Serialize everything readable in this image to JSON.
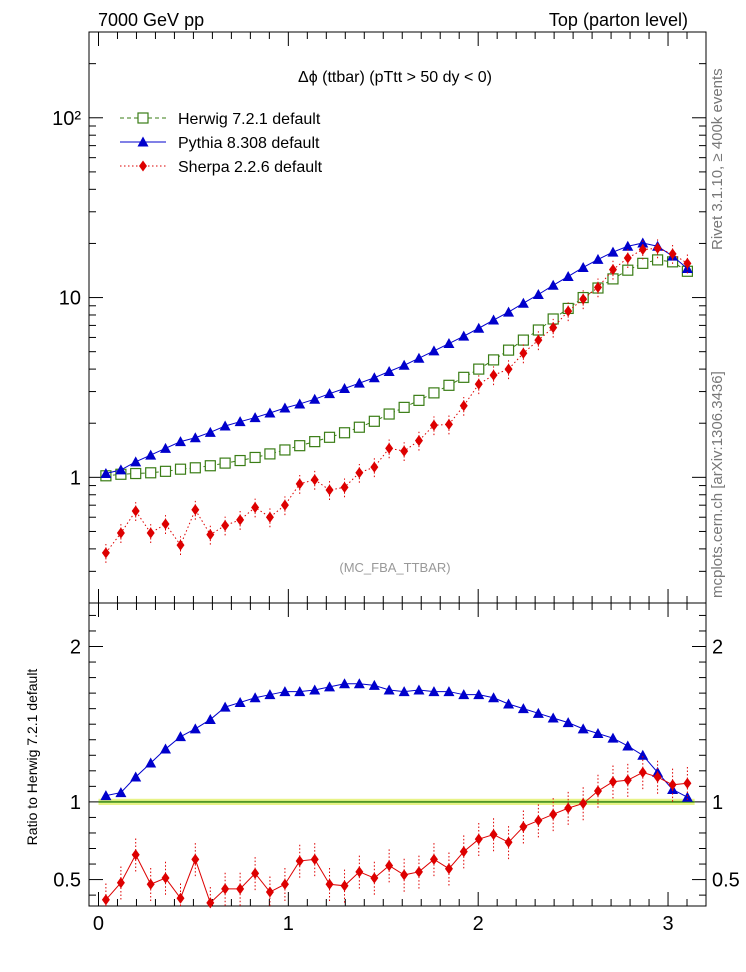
{
  "header": {
    "left": "7000 GeV pp",
    "right": "Top (parton level)",
    "side_top": "Rivet 3.1.10, ≥ 400k events",
    "side_bottom": "mcplots.cern.ch [arXiv:1306.3436]"
  },
  "chart_data": [
    {
      "type": "line",
      "title": "Δϕ (ttbar) (pTtt > 50 dy < 0)",
      "watermark": "(MC_FBA_TTBAR)",
      "xlim": [
        -0.05,
        3.2
      ],
      "ylim": [
        0.2,
        300
      ],
      "log_y": true,
      "legend_position": "top-left",
      "y_ticks": [
        {
          "value": 1,
          "label": "1"
        },
        {
          "value": 10,
          "label": "10"
        },
        {
          "value": 100,
          "label": "10²"
        }
      ],
      "x": [
        0.039,
        0.118,
        0.196,
        0.275,
        0.353,
        0.432,
        0.51,
        0.589,
        0.667,
        0.746,
        0.825,
        0.903,
        0.982,
        1.06,
        1.139,
        1.217,
        1.296,
        1.374,
        1.453,
        1.531,
        1.61,
        1.688,
        1.767,
        1.846,
        1.924,
        2.003,
        2.081,
        2.16,
        2.238,
        2.317,
        2.395,
        2.474,
        2.553,
        2.631,
        2.71,
        2.788,
        2.867,
        2.945,
        3.024,
        3.102
      ],
      "series": [
        {
          "name": "Herwig 7.2.1 default",
          "color": "#3a7d16",
          "marker": "open-square",
          "line": "dashed",
          "values": [
            1.02,
            1.04,
            1.05,
            1.06,
            1.08,
            1.11,
            1.13,
            1.16,
            1.2,
            1.24,
            1.29,
            1.35,
            1.42,
            1.5,
            1.58,
            1.67,
            1.77,
            1.9,
            2.05,
            2.25,
            2.45,
            2.68,
            2.95,
            3.25,
            3.6,
            4.0,
            4.5,
            5.1,
            5.8,
            6.6,
            7.6,
            8.7,
            10.0,
            11.3,
            12.7,
            14.2,
            15.5,
            16.2,
            15.8,
            14.0
          ]
        },
        {
          "name": "Pythia 8.308 default",
          "color": "#0000cc",
          "marker": "filled-triangle",
          "line": "solid",
          "values": [
            1.05,
            1.1,
            1.22,
            1.33,
            1.45,
            1.58,
            1.66,
            1.78,
            1.93,
            2.04,
            2.15,
            2.28,
            2.43,
            2.56,
            2.72,
            2.92,
            3.12,
            3.34,
            3.58,
            3.88,
            4.2,
            4.6,
            5.05,
            5.55,
            6.1,
            6.75,
            7.5,
            8.3,
            9.3,
            10.4,
            11.7,
            13.1,
            14.7,
            16.3,
            17.9,
            19.3,
            20.1,
            19.3,
            17.0,
            14.5
          ]
        },
        {
          "name": "Sherpa 2.2.6 default",
          "color": "#dd0000",
          "marker": "filled-diamond",
          "line": "dotted",
          "values": [
            0.38,
            0.49,
            0.65,
            0.49,
            0.55,
            0.42,
            0.66,
            0.48,
            0.54,
            0.58,
            0.68,
            0.6,
            0.7,
            0.92,
            0.97,
            0.85,
            0.88,
            1.06,
            1.14,
            1.45,
            1.4,
            1.6,
            1.95,
            1.97,
            2.5,
            3.3,
            3.7,
            4.0,
            4.9,
            5.8,
            6.8,
            8.4,
            9.8,
            11.4,
            14.3,
            16.6,
            18.5,
            18.8,
            17.5,
            15.5
          ]
        }
      ]
    },
    {
      "type": "line",
      "ylabel": "Ratio to Herwig 7.2.1 default",
      "xlim": [
        -0.05,
        3.2
      ],
      "ylim": [
        0.33,
        2.28
      ],
      "y_ticks": [
        {
          "value": 0.5,
          "label": "0.5"
        },
        {
          "value": 1,
          "label": "1"
        },
        {
          "value": 2,
          "label": "2"
        }
      ],
      "x_ticks": [
        {
          "value": 0,
          "label": "0"
        },
        {
          "value": 1,
          "label": "1"
        },
        {
          "value": 2,
          "label": "2"
        },
        {
          "value": 3,
          "label": "3"
        }
      ],
      "reference_line": 1,
      "series": [
        {
          "name": "Pythia 8.308 default",
          "color": "#0000cc",
          "values": [
            1.04,
            1.06,
            1.16,
            1.25,
            1.34,
            1.42,
            1.47,
            1.53,
            1.61,
            1.64,
            1.67,
            1.69,
            1.71,
            1.71,
            1.72,
            1.74,
            1.76,
            1.76,
            1.75,
            1.72,
            1.71,
            1.72,
            1.71,
            1.71,
            1.69,
            1.69,
            1.67,
            1.63,
            1.6,
            1.57,
            1.54,
            1.51,
            1.47,
            1.44,
            1.41,
            1.36,
            1.3,
            1.19,
            1.08,
            1.03
          ]
        },
        {
          "name": "Sherpa 2.2.6 default",
          "color": "#dd0000",
          "values": [
            0.37,
            0.48,
            0.66,
            0.47,
            0.51,
            0.38,
            0.63,
            0.35,
            0.44,
            0.44,
            0.54,
            0.42,
            0.47,
            0.62,
            0.63,
            0.47,
            0.46,
            0.55,
            0.51,
            0.59,
            0.53,
            0.55,
            0.63,
            0.57,
            0.68,
            0.76,
            0.79,
            0.74,
            0.84,
            0.88,
            0.92,
            0.96,
            0.99,
            1.07,
            1.13,
            1.14,
            1.19,
            1.16,
            1.11,
            1.12
          ]
        }
      ]
    }
  ]
}
